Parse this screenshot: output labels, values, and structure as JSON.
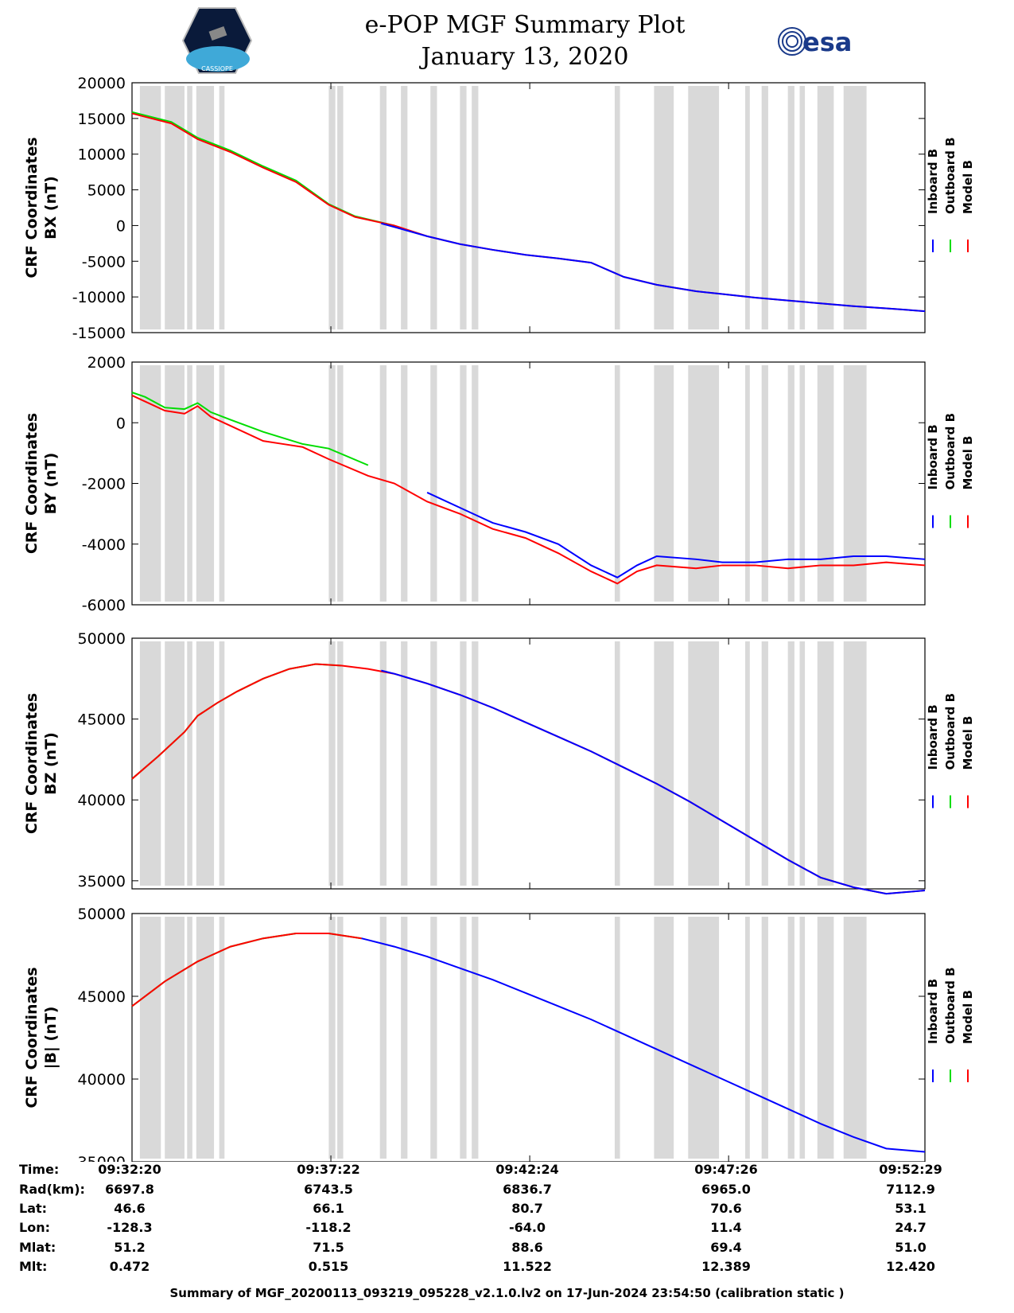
{
  "header": {
    "title": "e-POP MGF Summary Plot",
    "date": "January 13, 2020",
    "left_logo": "cassiope-mission-logo",
    "left_logo_text": "CASSIOPE",
    "right_logo": "esa-logo",
    "right_logo_text": "esa"
  },
  "colors": {
    "inboard": "#0000ff",
    "outboard": "#00dd00",
    "model": "#ff0000",
    "gap": "#d9d9d9"
  },
  "chart_data": [
    {
      "type": "line",
      "ylabel_line1": "CRF Coordinates",
      "ylabel_line2": "BX (nT)",
      "ylim": [
        -15000,
        20000
      ],
      "yticks": [
        20000,
        15000,
        10000,
        5000,
        0,
        -5000,
        -10000,
        -15000
      ],
      "xlim": [
        0,
        1209
      ],
      "legend": [
        "Inboard B",
        "Outboard B",
        "Model B"
      ],
      "series": [
        {
          "name": "Outboard B",
          "x": [
            0,
            60,
            100,
            150,
            200,
            250,
            300,
            340,
            400
          ],
          "values": [
            15900,
            14500,
            12300,
            10500,
            8300,
            6300,
            3000,
            1300,
            0
          ]
        },
        {
          "name": "Model B",
          "x": [
            0,
            60,
            100,
            150,
            200,
            250,
            300,
            340,
            400,
            450,
            500,
            550,
            600,
            650,
            700,
            750,
            800,
            860,
            900,
            950,
            1000,
            1050,
            1100,
            1150,
            1209
          ],
          "values": [
            15700,
            14300,
            12100,
            10300,
            8100,
            6100,
            2900,
            1200,
            0,
            -1500,
            -2600,
            -3400,
            -4100,
            -4600,
            -5200,
            -7200,
            -8300,
            -9200,
            -9600,
            -10100,
            -10500,
            -10900,
            -11300,
            -11600,
            -12000
          ]
        },
        {
          "name": "Inboard B",
          "x": [
            380,
            400,
            450,
            500,
            550,
            600,
            650,
            700,
            750,
            800,
            860,
            900,
            950,
            1000,
            1050,
            1100,
            1150,
            1209
          ],
          "values": [
            300,
            -200,
            -1500,
            -2600,
            -3400,
            -4100,
            -4600,
            -5200,
            -7200,
            -8300,
            -9200,
            -9600,
            -10100,
            -10500,
            -10900,
            -11300,
            -11600,
            -12000
          ]
        }
      ]
    },
    {
      "type": "line",
      "ylabel_line1": "CRF Coordinates",
      "ylabel_line2": "BY (nT)",
      "ylim": [
        -6000,
        2000
      ],
      "yticks": [
        2000,
        0,
        -2000,
        -4000,
        -6000
      ],
      "xlim": [
        0,
        1209
      ],
      "legend": [
        "Inboard B",
        "Outboard B",
        "Model B"
      ],
      "series": [
        {
          "name": "Outboard B",
          "x": [
            0,
            20,
            50,
            80,
            100,
            120,
            150,
            200,
            230,
            260,
            300,
            360
          ],
          "values": [
            1000,
            850,
            500,
            450,
            650,
            350,
            100,
            -300,
            -500,
            -700,
            -850,
            -1400
          ]
        },
        {
          "name": "Model B",
          "x": [
            0,
            20,
            50,
            80,
            100,
            120,
            150,
            200,
            230,
            260,
            300,
            360,
            400,
            450,
            500,
            550,
            600,
            650,
            700,
            740,
            770,
            800,
            860,
            900,
            950,
            1000,
            1050,
            1100,
            1150,
            1209
          ],
          "values": [
            900,
            700,
            400,
            300,
            550,
            200,
            -100,
            -600,
            -700,
            -800,
            -1200,
            -1750,
            -2000,
            -2600,
            -3000,
            -3500,
            -3800,
            -4300,
            -4900,
            -5300,
            -4900,
            -4700,
            -4800,
            -4700,
            -4700,
            -4800,
            -4700,
            -4700,
            -4600,
            -4700
          ]
        },
        {
          "name": "Inboard B",
          "x": [
            450,
            500,
            550,
            600,
            650,
            700,
            740,
            770,
            800,
            860,
            900,
            950,
            1000,
            1050,
            1100,
            1150,
            1209
          ],
          "values": [
            -2300,
            -2800,
            -3300,
            -3600,
            -4000,
            -4700,
            -5100,
            -4700,
            -4400,
            -4500,
            -4600,
            -4600,
            -4500,
            -4500,
            -4400,
            -4400,
            -4500
          ]
        }
      ]
    },
    {
      "type": "line",
      "ylabel_line1": "CRF Coordinates",
      "ylabel_line2": "BZ (nT)",
      "ylim": [
        34500,
        50000
      ],
      "yticks": [
        50000,
        45000,
        40000,
        35000
      ],
      "xlim": [
        0,
        1209
      ],
      "legend": [
        "Inboard B",
        "Outboard B",
        "Model B"
      ],
      "series": [
        {
          "name": "Outboard B",
          "x": [
            0,
            40,
            80,
            100,
            130,
            160,
            200,
            240,
            280,
            320
          ],
          "values": [
            41300,
            42700,
            44200,
            45200,
            46000,
            46700,
            47500,
            48100,
            48400,
            48300
          ]
        },
        {
          "name": "Model B",
          "x": [
            0,
            40,
            80,
            100,
            130,
            160,
            200,
            240,
            280,
            320,
            360,
            400,
            450,
            500,
            550,
            600,
            650,
            700,
            750,
            800,
            850,
            900,
            950,
            1000,
            1050,
            1100,
            1150,
            1209
          ],
          "values": [
            41300,
            42700,
            44200,
            45200,
            46000,
            46700,
            47500,
            48100,
            48400,
            48300,
            48100,
            47800,
            47200,
            46500,
            45700,
            44800,
            43900,
            43000,
            42000,
            41000,
            39900,
            38700,
            37500,
            36300,
            35200,
            34600,
            34200,
            34400
          ]
        },
        {
          "name": "Inboard B",
          "x": [
            380,
            400,
            450,
            500,
            550,
            600,
            650,
            700,
            750,
            800,
            850,
            900,
            950,
            1000,
            1050,
            1100,
            1150,
            1209
          ],
          "values": [
            48000,
            47800,
            47200,
            46500,
            45700,
            44800,
            43900,
            43000,
            42000,
            41000,
            39900,
            38700,
            37500,
            36300,
            35200,
            34600,
            34200,
            34400
          ]
        }
      ]
    },
    {
      "type": "line",
      "ylabel_line1": "CRF Coordinates",
      "ylabel_line2": "|B| (nT)",
      "ylim": [
        35000,
        50000
      ],
      "yticks": [
        50000,
        45000,
        40000,
        35000
      ],
      "xlim": [
        0,
        1209
      ],
      "legend": [
        "Inboard B",
        "Outboard B",
        "Model B"
      ],
      "series": [
        {
          "name": "Outboard B",
          "x": [
            0,
            50,
            100,
            150,
            200,
            250,
            300,
            350
          ],
          "values": [
            44400,
            45900,
            47100,
            48000,
            48500,
            48800,
            48800,
            48500
          ]
        },
        {
          "name": "Model B",
          "x": [
            0,
            50,
            100,
            150,
            200,
            250,
            300,
            350
          ],
          "values": [
            44400,
            45900,
            47100,
            48000,
            48500,
            48800,
            48800,
            48500
          ]
        },
        {
          "name": "Inboard B",
          "x": [
            350,
            400,
            450,
            500,
            550,
            600,
            650,
            700,
            750,
            800,
            850,
            900,
            950,
            1000,
            1050,
            1100,
            1150,
            1209
          ],
          "values": [
            48500,
            48000,
            47400,
            46700,
            46000,
            45200,
            44400,
            43600,
            42700,
            41800,
            40900,
            40000,
            39100,
            38200,
            37300,
            36500,
            35800,
            35600
          ]
        }
      ]
    }
  ],
  "gaps": [
    [
      12,
      44
    ],
    [
      50,
      80
    ],
    [
      84,
      92
    ],
    [
      98,
      125
    ],
    [
      133,
      141
    ],
    [
      300,
      310
    ],
    [
      313,
      322
    ],
    [
      378,
      388
    ],
    [
      410,
      420
    ],
    [
      455,
      465
    ],
    [
      500,
      510
    ],
    [
      518,
      528
    ],
    [
      736,
      744
    ],
    [
      796,
      826
    ],
    [
      848,
      895
    ],
    [
      935,
      942
    ],
    [
      960,
      970
    ],
    [
      1000,
      1010
    ],
    [
      1018,
      1026
    ],
    [
      1045,
      1070
    ],
    [
      1085,
      1120
    ]
  ],
  "info": {
    "labels": [
      "Time:",
      "Rad(km):",
      "Lat:",
      "Lon:",
      "Mlat:",
      "Mlt:"
    ],
    "columns": [
      [
        "09:32:20",
        "6697.8",
        "46.6",
        "-128.3",
        "51.2",
        "0.472"
      ],
      [
        "09:37:22",
        "6743.5",
        "66.1",
        "-118.2",
        "71.5",
        "0.515"
      ],
      [
        "09:42:24",
        "6836.7",
        "80.7",
        "-64.0",
        "88.6",
        "11.522"
      ],
      [
        "09:47:26",
        "6965.0",
        "70.6",
        "11.4",
        "69.4",
        "12.389"
      ],
      [
        "09:52:29",
        "7112.9",
        "53.1",
        "24.7",
        "51.0",
        "12.420"
      ]
    ]
  },
  "footer": "Summary of MGF_20200113_093219_095228_v2.1.0.lv2 on 17-Jun-2024 23:54:50 (calibration static )"
}
